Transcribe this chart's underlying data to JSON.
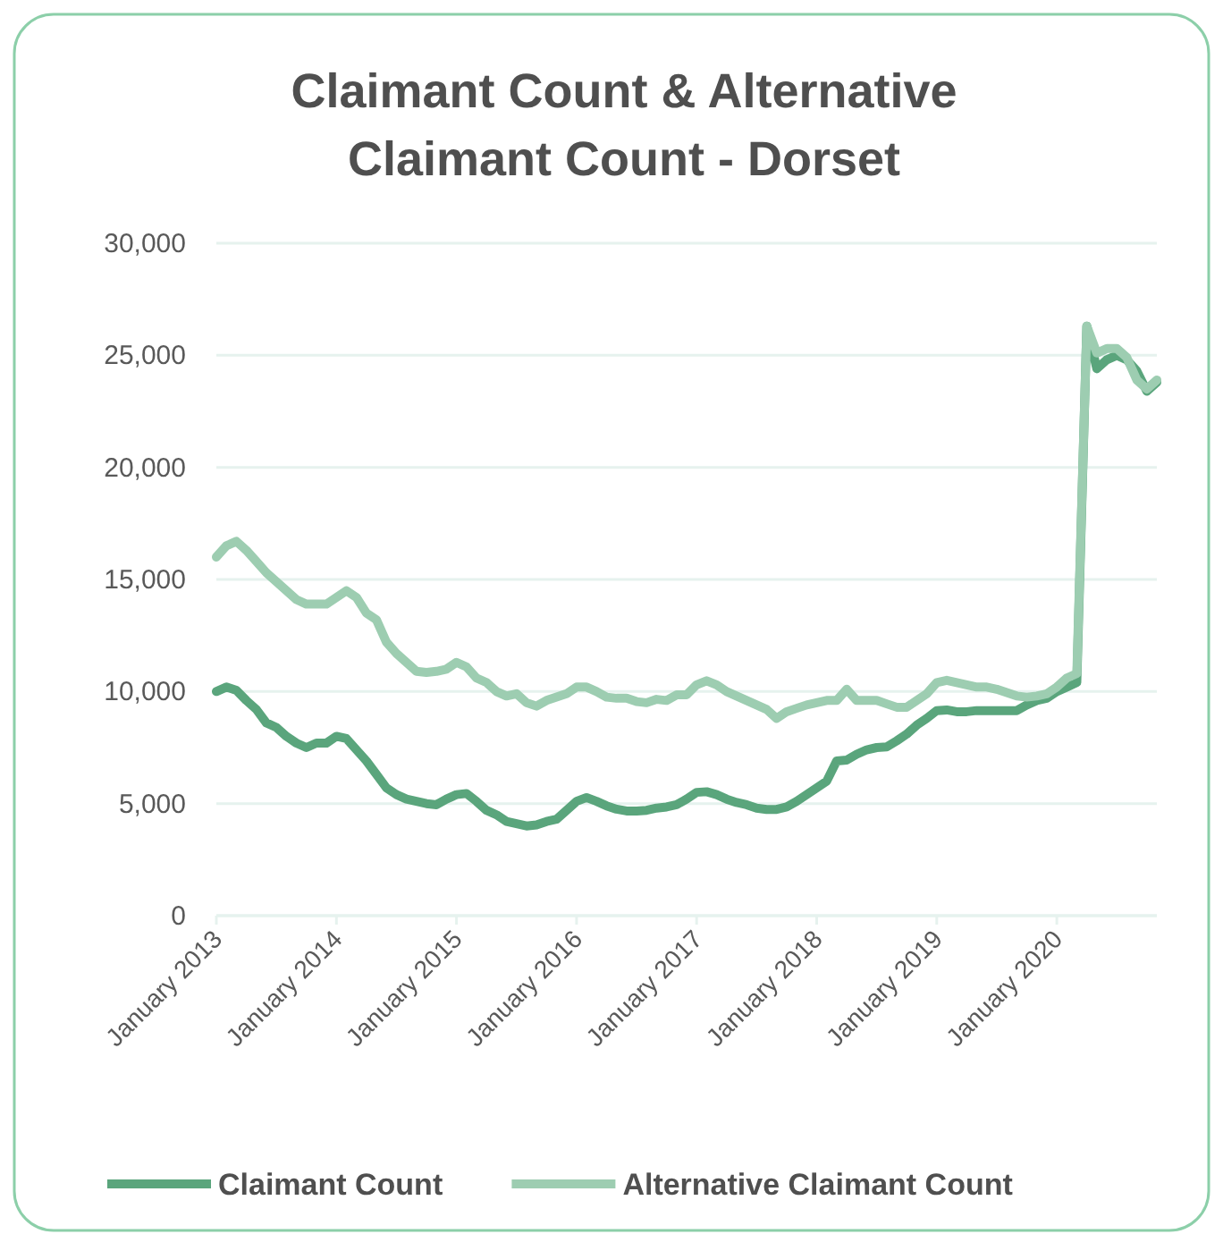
{
  "chart_data": {
    "type": "line",
    "title": "Claimant Count & Alternative Claimant Count - Dorset",
    "categories": [
      "January 2013",
      null,
      null,
      null,
      null,
      null,
      null,
      null,
      null,
      null,
      null,
      null,
      "January 2014",
      null,
      null,
      null,
      null,
      null,
      null,
      null,
      null,
      null,
      null,
      null,
      "January 2015",
      null,
      null,
      null,
      null,
      null,
      null,
      null,
      null,
      null,
      null,
      null,
      "January 2016",
      null,
      null,
      null,
      null,
      null,
      null,
      null,
      null,
      null,
      null,
      null,
      "January 2017",
      null,
      null,
      null,
      null,
      null,
      null,
      null,
      null,
      null,
      null,
      null,
      "January 2018",
      null,
      null,
      null,
      null,
      null,
      null,
      null,
      null,
      null,
      null,
      null,
      "January 2019",
      null,
      null,
      null,
      null,
      null,
      null,
      null,
      null,
      null,
      null,
      null,
      "January 2020",
      null,
      null,
      null,
      null,
      null,
      null,
      null,
      null,
      null,
      null
    ],
    "series": [
      {
        "name": "Claimant Count",
        "color": "#5aa57c",
        "values": [
          10000,
          10200,
          10050,
          9600,
          9200,
          8600,
          8400,
          8000,
          7700,
          7500,
          7700,
          7700,
          8000,
          7900,
          7400,
          6900,
          6300,
          5700,
          5400,
          5200,
          5100,
          5000,
          4950,
          5200,
          5400,
          5450,
          5100,
          4700,
          4500,
          4200,
          4100,
          4000,
          4050,
          4200,
          4300,
          4700,
          5100,
          5270,
          5100,
          4900,
          4750,
          4670,
          4670,
          4700,
          4800,
          4850,
          4950,
          5200,
          5500,
          5530,
          5400,
          5200,
          5050,
          4950,
          4800,
          4740,
          4740,
          4850,
          5100,
          5400,
          5700,
          6000,
          6900,
          6940,
          7200,
          7400,
          7500,
          7530,
          7800,
          8100,
          8500,
          8800,
          9150,
          9180,
          9100,
          9100,
          9150,
          9150,
          9150,
          9150,
          9150,
          9400,
          9600,
          9700,
          10000,
          10200,
          10400,
          26300,
          24400,
          24800,
          25000,
          24800,
          24300,
          23400,
          23800
        ]
      },
      {
        "name": "Alternative Claimant Count",
        "color": "#9dcdb1",
        "values": [
          16000,
          16500,
          16700,
          16300,
          15800,
          15300,
          14900,
          14500,
          14100,
          13900,
          13900,
          13900,
          14200,
          14500,
          14200,
          13500,
          13200,
          12200,
          11700,
          11300,
          10900,
          10850,
          10900,
          11000,
          11300,
          11100,
          10600,
          10400,
          10000,
          9800,
          9900,
          9500,
          9350,
          9600,
          9750,
          9900,
          10200,
          10200,
          10000,
          9750,
          9700,
          9700,
          9550,
          9500,
          9650,
          9600,
          9850,
          9850,
          10300,
          10480,
          10300,
          10000,
          9800,
          9600,
          9400,
          9200,
          8800,
          9100,
          9250,
          9400,
          9500,
          9600,
          9600,
          10100,
          9600,
          9600,
          9600,
          9450,
          9300,
          9300,
          9600,
          9900,
          10400,
          10500,
          10400,
          10300,
          10200,
          10200,
          10100,
          9950,
          9800,
          9750,
          9800,
          9900,
          10200,
          10600,
          10800,
          26300,
          25100,
          25300,
          25300,
          24900,
          23900,
          23500,
          23900
        ]
      }
    ],
    "ylim": [
      0,
      30000
    ],
    "yticks": [
      {
        "value": 0,
        "label": "0"
      },
      {
        "value": 5000,
        "label": "5,000"
      },
      {
        "value": 10000,
        "label": "10,000"
      },
      {
        "value": 15000,
        "label": "15,000"
      },
      {
        "value": 20000,
        "label": "20,000"
      },
      {
        "value": 25000,
        "label": "25,000"
      },
      {
        "value": 30000,
        "label": "30,000"
      }
    ],
    "grid": "y",
    "legend": "bottom",
    "marker": "none",
    "line_style": "solid"
  }
}
